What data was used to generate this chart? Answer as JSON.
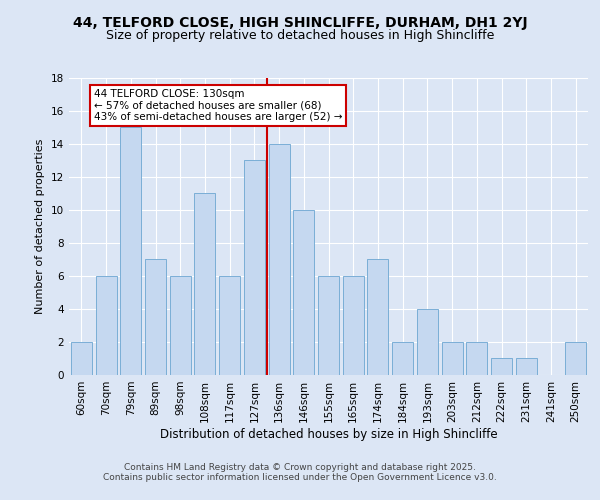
{
  "title": "44, TELFORD CLOSE, HIGH SHINCLIFFE, DURHAM, DH1 2YJ",
  "subtitle": "Size of property relative to detached houses in High Shincliffe",
  "xlabel": "Distribution of detached houses by size in High Shincliffe",
  "ylabel": "Number of detached properties",
  "categories": [
    "60sqm",
    "70sqm",
    "79sqm",
    "89sqm",
    "98sqm",
    "108sqm",
    "117sqm",
    "127sqm",
    "136sqm",
    "146sqm",
    "155sqm",
    "165sqm",
    "174sqm",
    "184sqm",
    "193sqm",
    "203sqm",
    "212sqm",
    "222sqm",
    "231sqm",
    "241sqm",
    "250sqm"
  ],
  "values": [
    2,
    6,
    15,
    7,
    6,
    11,
    6,
    13,
    14,
    10,
    6,
    6,
    7,
    2,
    4,
    2,
    2,
    1,
    1,
    0,
    2
  ],
  "bar_color": "#c5d8f0",
  "bar_edge_color": "#7aaed6",
  "ylim": [
    0,
    18
  ],
  "yticks": [
    0,
    2,
    4,
    6,
    8,
    10,
    12,
    14,
    16,
    18
  ],
  "vline_x_index": 8,
  "vline_color": "#cc0000",
  "annotation_line1": "44 TELFORD CLOSE: 130sqm",
  "annotation_line2": "← 57% of detached houses are smaller (68)",
  "annotation_line3": "43% of semi-detached houses are larger (52) →",
  "annotation_box_color": "#cc0000",
  "bg_color": "#dce6f5",
  "footer_text": "Contains HM Land Registry data © Crown copyright and database right 2025.\nContains public sector information licensed under the Open Government Licence v3.0.",
  "title_fontsize": 10,
  "subtitle_fontsize": 9,
  "xlabel_fontsize": 8.5,
  "ylabel_fontsize": 8,
  "tick_fontsize": 7.5,
  "annotation_fontsize": 7.5,
  "footer_fontsize": 6.5
}
